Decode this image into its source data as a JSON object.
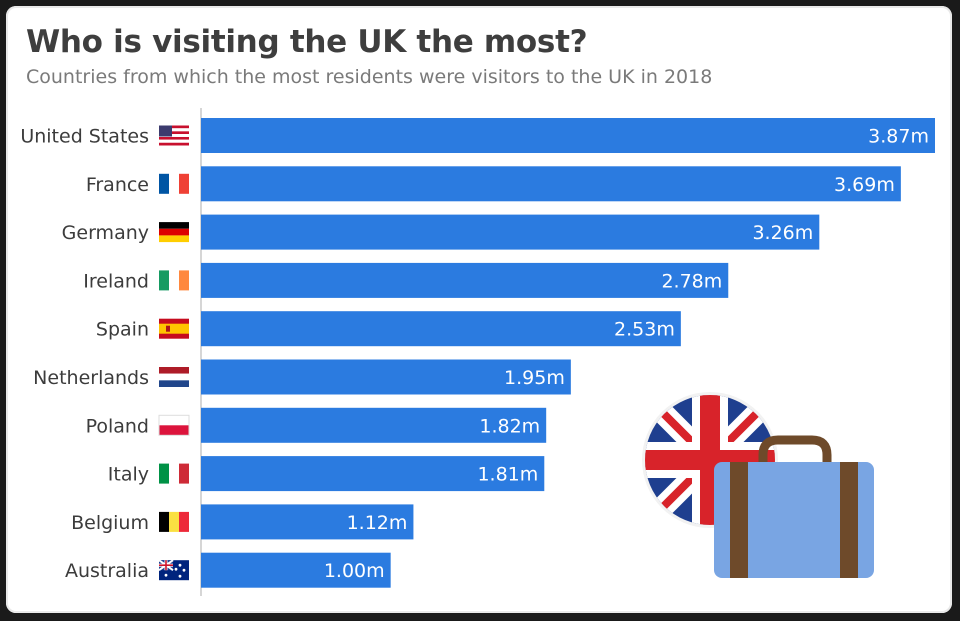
{
  "header": {
    "title": "Who is visiting the UK the most?",
    "subtitle": "Countries from which the most residents were visitors to the UK in 2018"
  },
  "colors": {
    "bar": "#2b7be0",
    "axis": "#c8c8c8"
  },
  "chart_data": {
    "type": "bar",
    "orientation": "horizontal",
    "title": "Who is visiting the UK the most?",
    "subtitle": "Countries from which the most residents were visitors to the UK in 2018",
    "xlabel": "",
    "ylabel": "",
    "grid": false,
    "xlim": [
      0,
      3.87
    ],
    "categories": [
      "United States",
      "France",
      "Germany",
      "Ireland",
      "Spain",
      "Netherlands",
      "Poland",
      "Italy",
      "Belgium",
      "Australia"
    ],
    "flags": [
      "us-flag-icon",
      "france-flag-icon",
      "germany-flag-icon",
      "ireland-flag-icon",
      "spain-flag-icon",
      "netherlands-flag-icon",
      "poland-flag-icon",
      "italy-flag-icon",
      "belgium-flag-icon",
      "australia-flag-icon"
    ],
    "values": [
      3.87,
      3.69,
      3.26,
      2.78,
      2.53,
      1.95,
      1.82,
      1.81,
      1.12,
      1.0
    ],
    "value_labels": [
      "3.87m",
      "3.69m",
      "3.26m",
      "2.78m",
      "2.53m",
      "1.95m",
      "1.82m",
      "1.81m",
      "1.12m",
      "1.00m"
    ]
  },
  "decoration": {
    "illustration": "uk-suitcase-icon"
  }
}
